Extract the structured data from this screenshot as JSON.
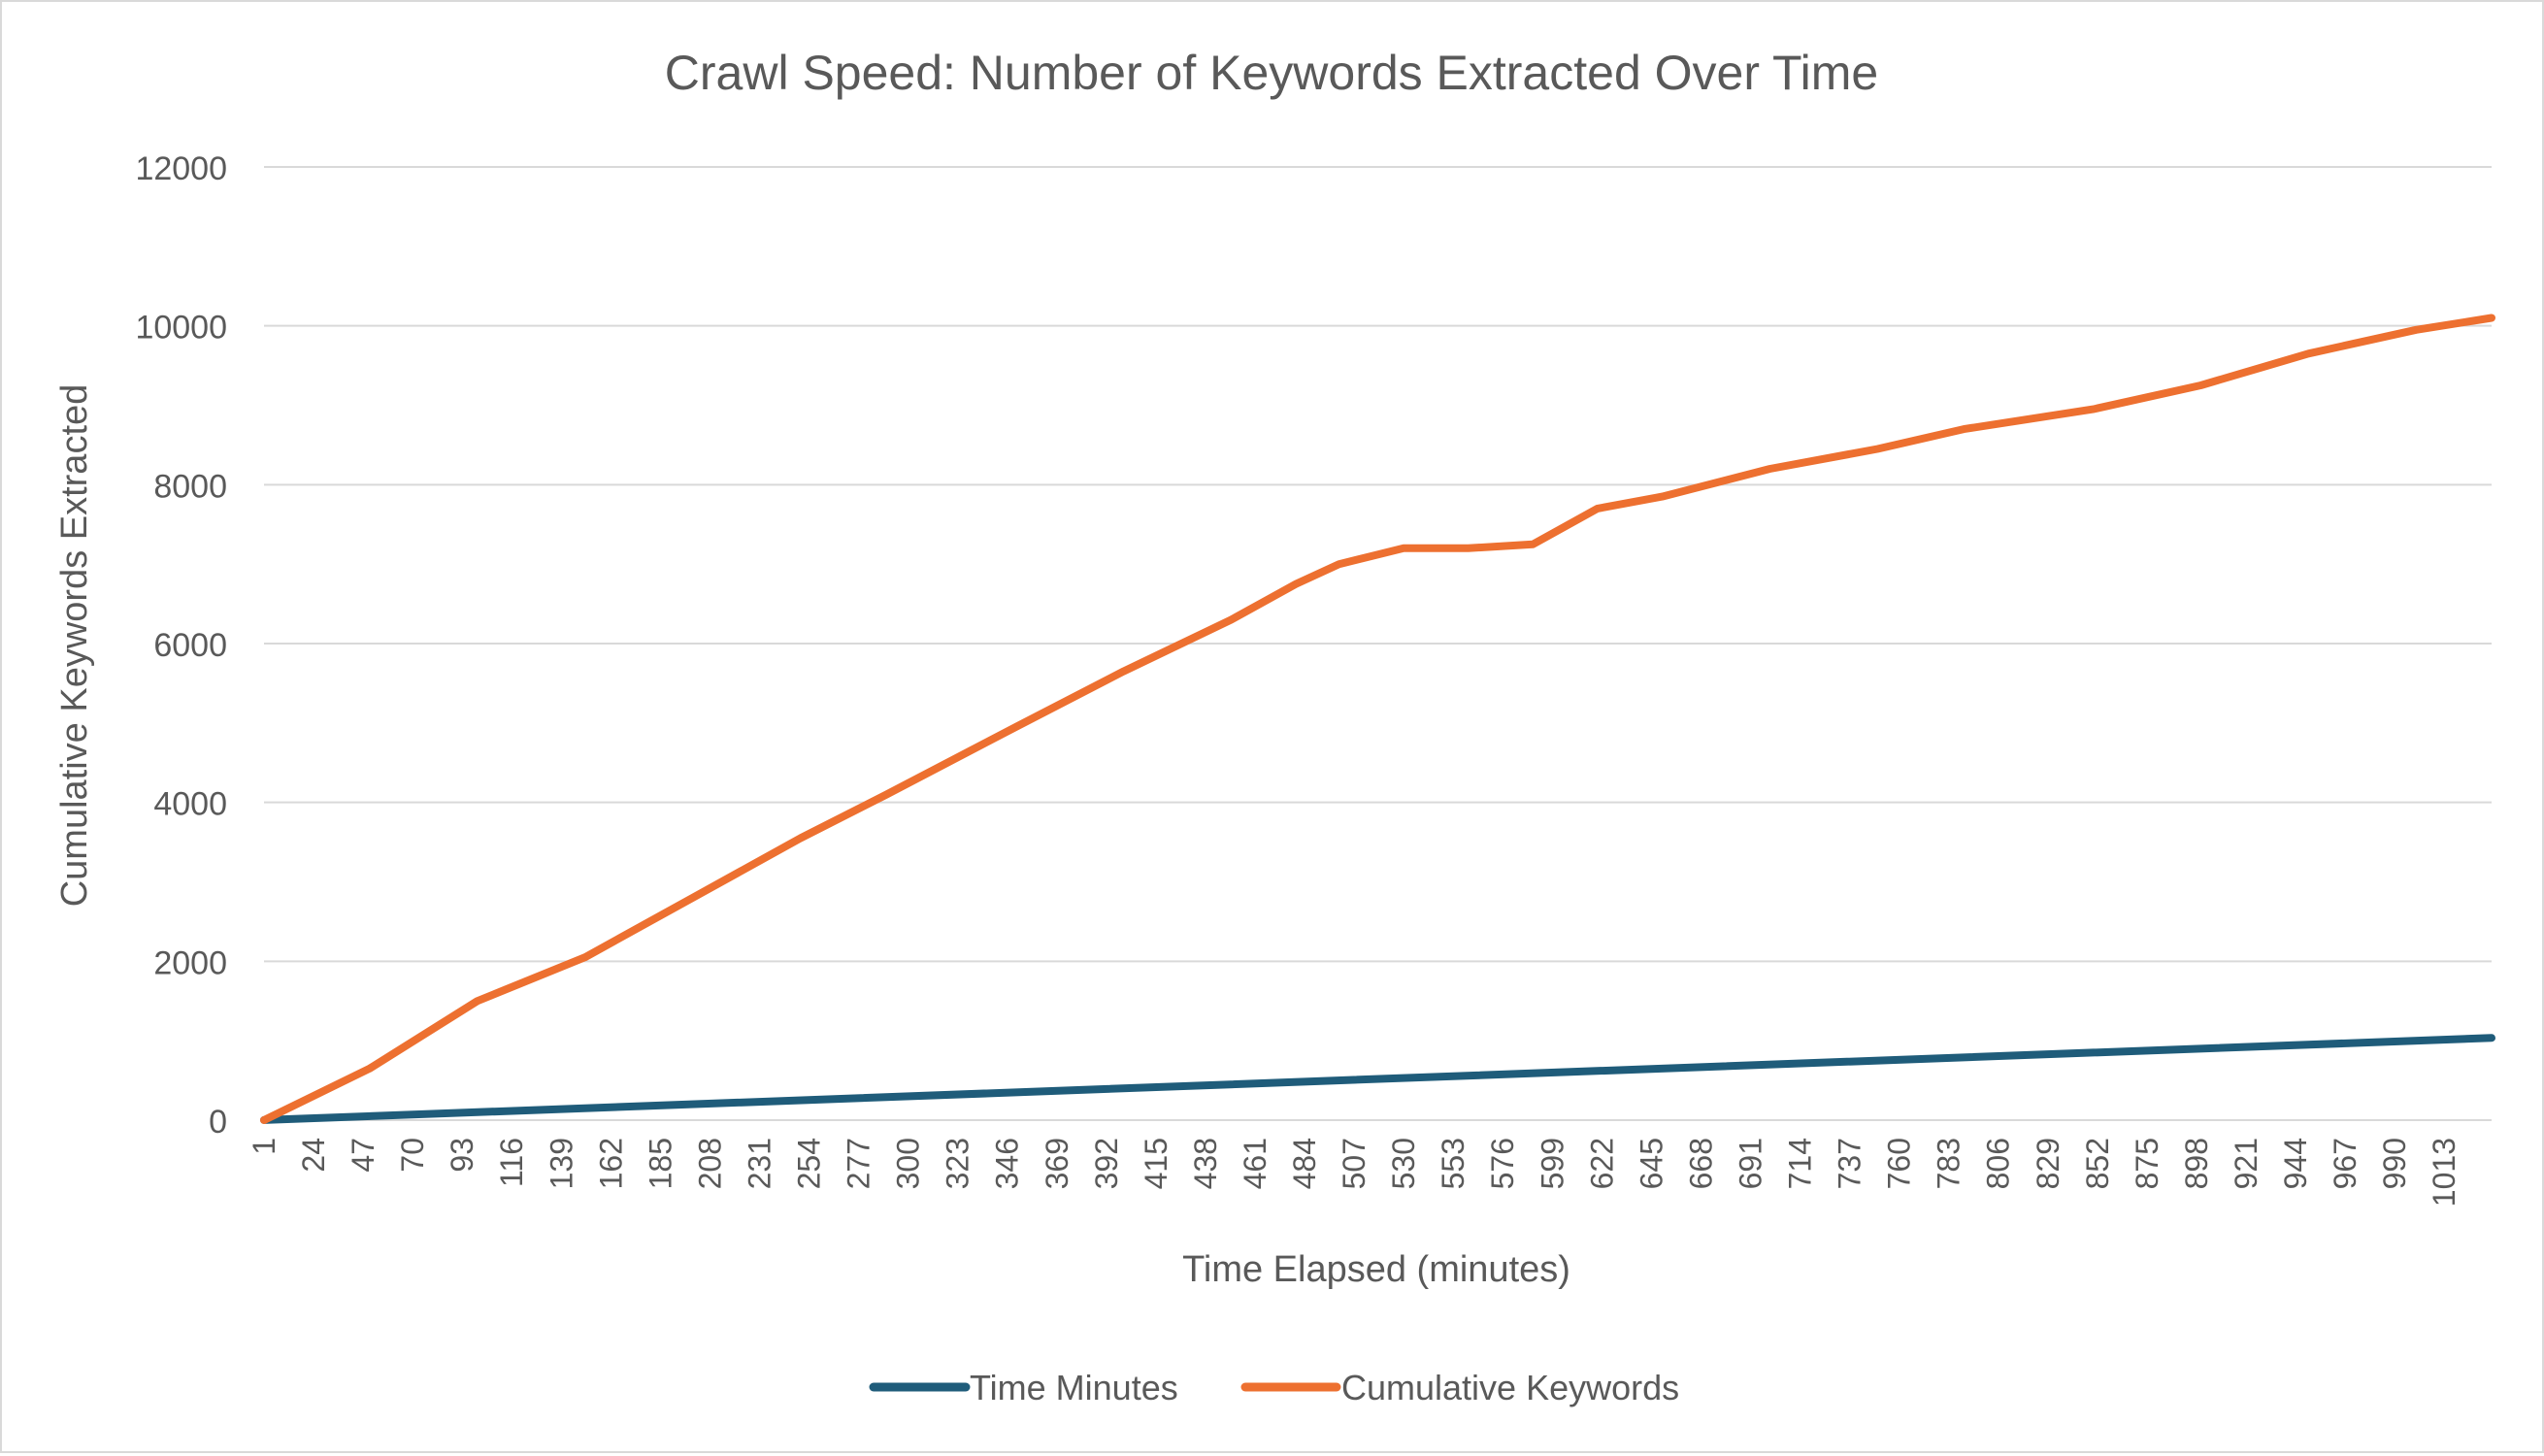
{
  "chart_data": {
    "type": "line",
    "title": "Crawl Speed: Number of Keywords Extracted Over Time",
    "xlabel": "Time Elapsed (minutes)",
    "ylabel": "Cumulative Keywords Extracted",
    "ylim": [
      0,
      12000
    ],
    "yticks": [
      "0",
      "2000",
      "4000",
      "6000",
      "8000",
      "10000",
      "12000"
    ],
    "xlim": [
      1,
      1035
    ],
    "xtick_labels": [
      "1",
      "24",
      "47",
      "70",
      "93",
      "116",
      "139",
      "162",
      "185",
      "208",
      "231",
      "254",
      "277",
      "300",
      "323",
      "346",
      "369",
      "392",
      "415",
      "438",
      "461",
      "484",
      "507",
      "530",
      "553",
      "576",
      "599",
      "622",
      "645",
      "668",
      "691",
      "714",
      "737",
      "760",
      "783",
      "806",
      "829",
      "852",
      "875",
      "898",
      "921",
      "944",
      "967",
      "990",
      "1013"
    ],
    "grid": true,
    "legend_position": "bottom",
    "series": [
      {
        "name": "Time Minutes",
        "color": "#1F5C7A",
        "x": [
          1,
          1035
        ],
        "y": [
          1,
          1035
        ]
      },
      {
        "name": "Cumulative Keywords",
        "color": "#ED7030",
        "x": [
          1,
          50,
          100,
          150,
          200,
          250,
          290,
          350,
          400,
          450,
          480,
          500,
          515,
          530,
          560,
          590,
          620,
          650,
          700,
          750,
          790,
          850,
          900,
          950,
          1000,
          1035
        ],
        "y": [
          0,
          650,
          1500,
          2050,
          2800,
          3550,
          4100,
          4950,
          5650,
          6300,
          6750,
          7000,
          7100,
          7200,
          7200,
          7250,
          7700,
          7850,
          8200,
          8450,
          8700,
          8950,
          9250,
          9650,
          9950,
          10100
        ]
      }
    ]
  }
}
